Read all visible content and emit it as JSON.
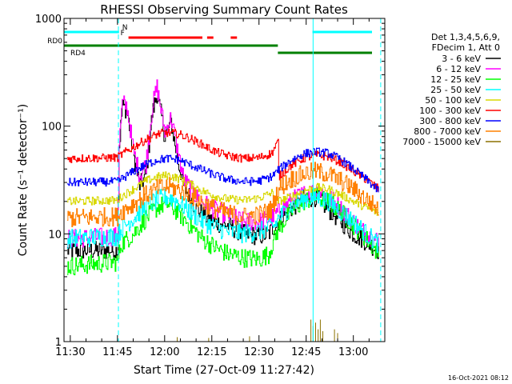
{
  "chart_data": {
    "type": "line",
    "title": "RHESSI Observing Summary Count Rates",
    "xlabel": "Start Time (27-Oct-09 11:27:42)",
    "ylabel": "Count Rate (s⁻¹ detector⁻¹)",
    "y_scale": "log",
    "ylim": [
      1,
      1000
    ],
    "xlim_minutes": [
      -2,
      100
    ],
    "x_ticks": [
      {
        "m": 0,
        "label": "11:30"
      },
      {
        "m": 15,
        "label": "11:45"
      },
      {
        "m": 30,
        "label": "12:00"
      },
      {
        "m": 45,
        "label": "12:15"
      },
      {
        "m": 60,
        "label": "12:30"
      },
      {
        "m": 75,
        "label": "12:45"
      },
      {
        "m": 90,
        "label": "13:00"
      }
    ],
    "y_ticks": [
      {
        "v": 1,
        "label": "1"
      },
      {
        "v": 10,
        "label": "10"
      },
      {
        "v": 100,
        "label": "100"
      },
      {
        "v": 1000,
        "label": "1000"
      }
    ],
    "legend": {
      "header": [
        "Det 1,3,4,5,6,9,",
        "FDecim 1, Att 0"
      ],
      "entries": [
        {
          "label": "3 - 6 keV",
          "color": "#000000"
        },
        {
          "label": "6 - 12 keV",
          "color": "#ff00ff"
        },
        {
          "label": "12 - 25 keV",
          "color": "#00ff00"
        },
        {
          "label": "25 - 50 keV",
          "color": "#00ffff"
        },
        {
          "label": "50 - 100 keV",
          "color": "#d8d800"
        },
        {
          "label": "100 - 300 keV",
          "color": "#ff0000"
        },
        {
          "label": "300 - 800 keV",
          "color": "#0000ff"
        },
        {
          "label": "800 - 7000 keV",
          "color": "#ff8000"
        },
        {
          "label": "7000 - 15000 keV",
          "color": "#8b7000"
        }
      ]
    },
    "flags": [
      {
        "label": "N",
        "color": "#00ffff",
        "intervals": [
          [
            -2,
            15.5
          ],
          [
            77,
            98.5
          ]
        ]
      },
      {
        "label": "F",
        "color": "#ff0000",
        "intervals": [
          [
            18.5,
            42
          ],
          [
            43.5,
            45.5
          ],
          [
            51,
            53
          ]
        ]
      },
      {
        "label": "RD0",
        "color": "#008000",
        "intervals": [
          [
            -2,
            66
          ]
        ]
      },
      {
        "label": "RD4",
        "color": "#008000",
        "intervals": [
          [
            66,
            98.5
          ]
        ]
      }
    ],
    "night_markers_minutes": [
      15.3,
      77.2,
      98.7
    ],
    "series": [
      {
        "name": "3 - 6 keV",
        "color": "#000000",
        "points": [
          [
            -1,
            7
          ],
          [
            15,
            7
          ],
          [
            15.5,
            65
          ],
          [
            16.5,
            155
          ],
          [
            18,
            140
          ],
          [
            20,
            55
          ],
          [
            22,
            28
          ],
          [
            24,
            35
          ],
          [
            26,
            130
          ],
          [
            27.5,
            200
          ],
          [
            29,
            120
          ],
          [
            30,
            80
          ],
          [
            32,
            110
          ],
          [
            34,
            50
          ],
          [
            36,
            28
          ],
          [
            40,
            17
          ],
          [
            45,
            13
          ],
          [
            50,
            12
          ],
          [
            55,
            10
          ],
          [
            60,
            9.5
          ],
          [
            63,
            10
          ],
          [
            66,
            13
          ],
          [
            70,
            17
          ],
          [
            74,
            21
          ],
          [
            78,
            22
          ],
          [
            82,
            17
          ],
          [
            86,
            13
          ],
          [
            90,
            10
          ],
          [
            94,
            8.5
          ],
          [
            98,
            7
          ]
        ]
      },
      {
        "name": "6 - 12 keV",
        "color": "#ff00ff",
        "points": [
          [
            -1,
            9
          ],
          [
            15,
            9.5
          ],
          [
            15.5,
            70
          ],
          [
            16.5,
            165
          ],
          [
            18,
            150
          ],
          [
            20,
            60
          ],
          [
            22,
            35
          ],
          [
            24,
            45
          ],
          [
            26,
            150
          ],
          [
            27.5,
            230
          ],
          [
            29,
            130
          ],
          [
            30,
            90
          ],
          [
            32,
            120
          ],
          [
            34,
            60
          ],
          [
            36,
            32
          ],
          [
            40,
            22
          ],
          [
            45,
            17
          ],
          [
            50,
            15
          ],
          [
            55,
            13
          ],
          [
            60,
            13
          ],
          [
            64,
            14
          ],
          [
            67,
            17
          ],
          [
            71,
            21
          ],
          [
            75,
            24
          ],
          [
            79,
            25
          ],
          [
            83,
            21
          ],
          [
            87,
            16
          ],
          [
            91,
            12
          ],
          [
            94,
            10
          ],
          [
            98,
            8.5
          ]
        ]
      },
      {
        "name": "12 - 25 keV",
        "color": "#00ff00",
        "points": [
          [
            -1,
            5
          ],
          [
            15,
            5.5
          ],
          [
            16,
            8
          ],
          [
            20,
            10
          ],
          [
            24,
            14
          ],
          [
            28,
            18
          ],
          [
            31,
            19
          ],
          [
            34,
            16
          ],
          [
            38,
            12
          ],
          [
            42,
            9
          ],
          [
            46,
            7.5
          ],
          [
            50,
            6.5
          ],
          [
            55,
            6
          ],
          [
            60,
            5.8
          ],
          [
            63,
            6.5
          ],
          [
            66,
            11
          ],
          [
            70,
            16
          ],
          [
            74,
            20
          ],
          [
            78,
            22
          ],
          [
            82,
            20
          ],
          [
            86,
            16
          ],
          [
            90,
            12
          ],
          [
            94,
            9
          ],
          [
            98,
            6.5
          ]
        ]
      },
      {
        "name": "25 - 50 keV",
        "color": "#00ffff",
        "points": [
          [
            -1,
            9
          ],
          [
            15,
            9.5
          ],
          [
            16,
            11
          ],
          [
            20,
            14
          ],
          [
            24,
            18
          ],
          [
            28,
            21
          ],
          [
            31,
            22
          ],
          [
            34,
            20
          ],
          [
            38,
            16
          ],
          [
            42,
            13
          ],
          [
            46,
            11.5
          ],
          [
            50,
            10.5
          ],
          [
            55,
            10
          ],
          [
            60,
            10.5
          ],
          [
            65,
            12
          ],
          [
            66,
            14
          ],
          [
            70,
            18
          ],
          [
            74,
            21
          ],
          [
            78,
            22
          ],
          [
            82,
            20
          ],
          [
            86,
            16
          ],
          [
            90,
            13
          ],
          [
            94,
            10
          ],
          [
            98,
            8
          ]
        ]
      },
      {
        "name": "50 - 100 keV",
        "color": "#d8d800",
        "points": [
          [
            -1,
            20
          ],
          [
            15,
            20.5
          ],
          [
            16,
            22
          ],
          [
            20,
            26
          ],
          [
            24,
            31
          ],
          [
            28,
            34
          ],
          [
            31,
            35
          ],
          [
            34,
            33
          ],
          [
            38,
            29
          ],
          [
            42,
            25
          ],
          [
            46,
            22.5
          ],
          [
            50,
            21
          ],
          [
            55,
            20.5
          ],
          [
            60,
            21.5
          ],
          [
            64,
            24
          ],
          [
            66,
            20
          ],
          [
            70,
            22
          ],
          [
            74,
            25
          ],
          [
            78,
            27
          ],
          [
            82,
            26
          ],
          [
            86,
            23
          ],
          [
            90,
            20
          ],
          [
            94,
            17.5
          ],
          [
            98,
            15.5
          ]
        ]
      },
      {
        "name": "100 - 300 keV",
        "color": "#ff0000",
        "points": [
          [
            -1,
            50
          ],
          [
            15,
            51
          ],
          [
            16,
            54
          ],
          [
            20,
            64
          ],
          [
            24,
            75
          ],
          [
            28,
            85
          ],
          [
            31,
            87
          ],
          [
            34,
            85
          ],
          [
            38,
            77
          ],
          [
            42,
            67
          ],
          [
            46,
            58
          ],
          [
            50,
            53
          ],
          [
            55,
            50
          ],
          [
            60,
            51
          ],
          [
            64,
            56
          ],
          [
            66,
            72
          ],
          [
            66.3,
            34
          ],
          [
            70,
            43
          ],
          [
            74,
            50
          ],
          [
            78,
            54
          ],
          [
            82,
            52
          ],
          [
            86,
            46
          ],
          [
            90,
            38
          ],
          [
            94,
            32
          ],
          [
            98,
            26
          ]
        ]
      },
      {
        "name": "300 - 800 keV",
        "color": "#0000ff",
        "points": [
          [
            -1,
            30
          ],
          [
            15,
            30.5
          ],
          [
            16,
            32
          ],
          [
            20,
            38
          ],
          [
            24,
            44
          ],
          [
            28,
            49
          ],
          [
            31,
            50
          ],
          [
            34,
            49
          ],
          [
            38,
            44
          ],
          [
            42,
            39
          ],
          [
            46,
            35
          ],
          [
            50,
            32
          ],
          [
            55,
            30.5
          ],
          [
            60,
            31
          ],
          [
            64,
            34
          ],
          [
            66,
            39
          ],
          [
            70,
            48
          ],
          [
            74,
            55
          ],
          [
            78,
            58
          ],
          [
            82,
            56
          ],
          [
            86,
            49
          ],
          [
            90,
            40
          ],
          [
            94,
            32
          ],
          [
            98,
            25
          ]
        ]
      },
      {
        "name": "800 - 7000 keV",
        "color": "#ff8000",
        "points": [
          [
            -1,
            14
          ],
          [
            15,
            14.5
          ],
          [
            16,
            16
          ],
          [
            20,
            19
          ],
          [
            24,
            23
          ],
          [
            28,
            26.5
          ],
          [
            31,
            27.5
          ],
          [
            34,
            26
          ],
          [
            38,
            23
          ],
          [
            42,
            19.5
          ],
          [
            46,
            17
          ],
          [
            50,
            15.5
          ],
          [
            55,
            14.5
          ],
          [
            60,
            15
          ],
          [
            64,
            17
          ],
          [
            66,
            26
          ],
          [
            70,
            32
          ],
          [
            74,
            36
          ],
          [
            78,
            38
          ],
          [
            82,
            36
          ],
          [
            86,
            31
          ],
          [
            90,
            26
          ],
          [
            94,
            21
          ],
          [
            98,
            17
          ]
        ]
      }
    ],
    "spikes_7000_15000": [
      {
        "m": 76.5,
        "v": 1.6
      },
      {
        "m": 77.2,
        "v": 1.4
      },
      {
        "m": 78,
        "v": 1.5
      },
      {
        "m": 78.8,
        "v": 1.3
      },
      {
        "m": 79.5,
        "v": 1.6
      },
      {
        "m": 80.3,
        "v": 1.25
      },
      {
        "m": 84,
        "v": 1.3
      },
      {
        "m": 85,
        "v": 1.2
      },
      {
        "m": 34,
        "v": 1.1
      },
      {
        "m": 44,
        "v": 1.08
      },
      {
        "m": 57,
        "v": 1.12
      }
    ],
    "footer_date": "16-Oct-2021 08:12"
  }
}
